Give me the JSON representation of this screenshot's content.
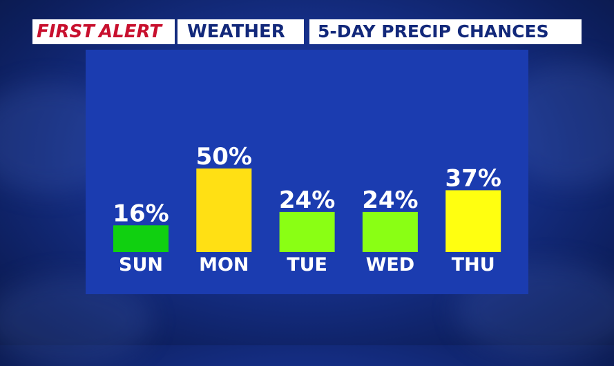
{
  "header": {
    "brand_first": "FIRST",
    "brand_alert": "ALERT",
    "weather": "WEATHER",
    "title": "5-DAY PRECIP CHANCES"
  },
  "colors": {
    "brand_red": "#c8102e",
    "header_text": "#12287a",
    "panel": "#1b3cb0"
  },
  "chart_data": {
    "type": "bar",
    "title": "5-DAY PRECIP CHANCES",
    "categories": [
      "SUN",
      "MON",
      "TUE",
      "WED",
      "THU"
    ],
    "values": [
      16,
      50,
      24,
      24,
      37
    ],
    "value_labels": [
      "16%",
      "50%",
      "24%",
      "24%",
      "37%"
    ],
    "bar_colors": [
      "#10d010",
      "#ffe014",
      "#8aff14",
      "#8aff14",
      "#ffff10"
    ],
    "ylim": [
      0,
      50
    ],
    "grid": false,
    "legend": "none"
  }
}
